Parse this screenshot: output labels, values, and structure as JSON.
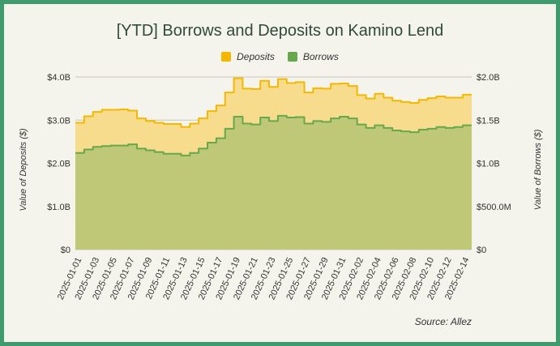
{
  "chart_data": {
    "type": "area",
    "title": "[YTD] Borrows and Deposits on Kamino Lend",
    "ylabel": "Value of Deposits ($)",
    "y2label": "Value of Borrows ($)",
    "source": "Source: Allez",
    "ylim": [
      0,
      4000000000
    ],
    "y2lim": [
      0,
      2000000000
    ],
    "yticks": [
      "$0",
      "$1.0B",
      "$2.0B",
      "$3.0B",
      "$4.0B"
    ],
    "y2ticks": [
      "$0",
      "$500.0M",
      "$1.0B",
      "$1.5B",
      "$2.0B"
    ],
    "grid": true,
    "legend": "top-center",
    "x": [
      "2025-01-01",
      "2025-01-02",
      "2025-01-03",
      "2025-01-04",
      "2025-01-05",
      "2025-01-06",
      "2025-01-07",
      "2025-01-08",
      "2025-01-09",
      "2025-01-10",
      "2025-01-11",
      "2025-01-12",
      "2025-01-13",
      "2025-01-14",
      "2025-01-15",
      "2025-01-16",
      "2025-01-17",
      "2025-01-18",
      "2025-01-19",
      "2025-01-20",
      "2025-01-21",
      "2025-01-22",
      "2025-01-23",
      "2025-01-24",
      "2025-01-25",
      "2025-01-26",
      "2025-01-27",
      "2025-01-28",
      "2025-01-29",
      "2025-01-30",
      "2025-01-31",
      "2025-02-01",
      "2025-02-02",
      "2025-02-03",
      "2025-02-04",
      "2025-02-05",
      "2025-02-06",
      "2025-02-07",
      "2025-02-08",
      "2025-02-09",
      "2025-02-10",
      "2025-02-11",
      "2025-02-12",
      "2025-02-13",
      "2025-02-14"
    ],
    "series": [
      {
        "name": "Deposits",
        "axis": "left",
        "color": "#f5b800",
        "fill": "#f6dc8c",
        "values": [
          2.94,
          3.09,
          3.19,
          3.24,
          3.24,
          3.25,
          3.22,
          3.04,
          2.98,
          2.94,
          2.91,
          2.91,
          2.84,
          2.92,
          3.04,
          3.21,
          3.34,
          3.64,
          3.97,
          3.73,
          3.72,
          3.91,
          3.77,
          3.95,
          3.86,
          3.88,
          3.64,
          3.74,
          3.73,
          3.84,
          3.85,
          3.79,
          3.58,
          3.5,
          3.61,
          3.52,
          3.45,
          3.42,
          3.4,
          3.47,
          3.51,
          3.55,
          3.52,
          3.52,
          3.59
        ]
      },
      {
        "name": "Borrows",
        "axis": "right",
        "color": "#67a84c",
        "fill": "#bfc876",
        "values": [
          1.12,
          1.16,
          1.19,
          1.2,
          1.205,
          1.205,
          1.22,
          1.17,
          1.15,
          1.13,
          1.11,
          1.11,
          1.09,
          1.12,
          1.17,
          1.24,
          1.29,
          1.4,
          1.54,
          1.46,
          1.45,
          1.53,
          1.49,
          1.55,
          1.53,
          1.535,
          1.46,
          1.49,
          1.48,
          1.52,
          1.54,
          1.52,
          1.45,
          1.41,
          1.44,
          1.41,
          1.38,
          1.37,
          1.36,
          1.39,
          1.4,
          1.42,
          1.41,
          1.42,
          1.44
        ]
      }
    ],
    "value_unit": "billions USD"
  }
}
